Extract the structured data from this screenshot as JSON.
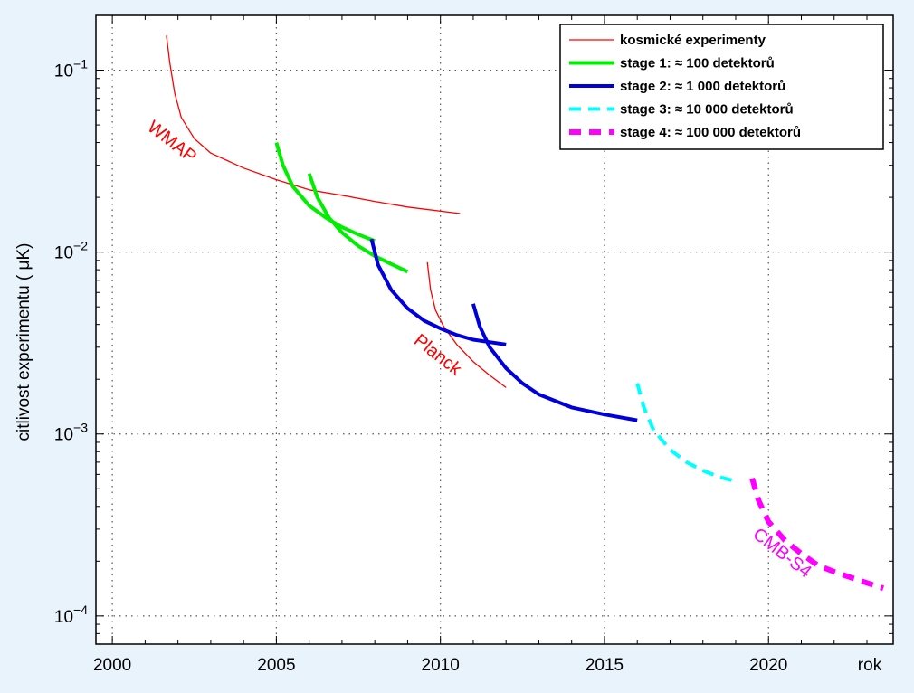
{
  "chart_data": {
    "type": "line",
    "x_scale": "linear",
    "y_scale": "log",
    "xlim": [
      1999.5,
      2023.8
    ],
    "ylim": [
      7e-05,
      0.2
    ],
    "x_ticks": [
      2000,
      2005,
      2010,
      2015,
      2020
    ],
    "x_tick_labels": [
      "2000",
      "2005",
      "2010",
      "2015",
      "2020"
    ],
    "y_ticks": [
      0.1,
      0.01,
      0.001,
      0.0001
    ],
    "y_tick_labels": [
      {
        "base": "10",
        "exp": "−1"
      },
      {
        "base": "10",
        "exp": "−2"
      },
      {
        "base": "10",
        "exp": "−3"
      },
      {
        "base": "10",
        "exp": "−4"
      }
    ],
    "xlabel": "rok",
    "ylabel": "citlivost experimentu ( μK)",
    "grid": true,
    "legend_position": "top-right",
    "legend": [
      {
        "label": "kosmické experimenty",
        "color": "#ff0000",
        "style": "thin"
      },
      {
        "label": "stage 1: ≈ 100 detektorů",
        "color": "#00ee00",
        "style": "solid"
      },
      {
        "label": "stage 2: ≈ 1 000 detektorů",
        "color": "#0000dd",
        "style": "solid"
      },
      {
        "label": "stage 3: ≈ 10 000 detektorů",
        "color": "#00ffff",
        "style": "dashed"
      },
      {
        "label": "stage 4: ≈ 100 000 detektorů",
        "color": "#ff00ff",
        "style": "dashed-thick"
      }
    ],
    "annotations": [
      {
        "text": "WMAP",
        "color": "#ff0000",
        "x": 2001.8,
        "y": 0.04
      },
      {
        "text": "Planck",
        "color": "#ff0000",
        "x": 2009.9,
        "y": 0.0027
      },
      {
        "text": "CMB-S4",
        "color": "#ff00ff",
        "x": 2020.4,
        "y": 0.00022
      }
    ],
    "series": [
      {
        "group": "kosmické experimenty",
        "color": "#ff0000",
        "style": "thin",
        "x": [
          2001.65,
          2001.75,
          2001.9,
          2002.1,
          2002.5,
          2003,
          2004,
          2005,
          2006,
          2007,
          2008,
          2009,
          2010.6
        ],
        "y": [
          0.155,
          0.11,
          0.075,
          0.055,
          0.042,
          0.035,
          0.029,
          0.025,
          0.022,
          0.0205,
          0.019,
          0.0177,
          0.0163
        ]
      },
      {
        "group": "kosmické experimenty",
        "color": "#ff0000",
        "style": "thin",
        "x": [
          2009.6,
          2009.7,
          2009.85,
          2010.1,
          2010.5,
          2011,
          2011.5,
          2012
        ],
        "y": [
          0.0088,
          0.0062,
          0.0048,
          0.0039,
          0.0031,
          0.0025,
          0.0021,
          0.0018
        ]
      },
      {
        "group": "stage 1: ≈ 100 detektorů",
        "color": "#00ee00",
        "style": "solid",
        "x": [
          2005,
          2005.2,
          2005.5,
          2006,
          2006.5,
          2007,
          2007.5,
          2008
        ],
        "y": [
          0.04,
          0.03,
          0.023,
          0.018,
          0.0155,
          0.0137,
          0.0125,
          0.0115
        ]
      },
      {
        "group": "stage 1: ≈ 100 detektorů",
        "color": "#00ee00",
        "style": "solid",
        "x": [
          2006,
          2006.25,
          2006.6,
          2007,
          2007.5,
          2008,
          2008.5,
          2009
        ],
        "y": [
          0.027,
          0.02,
          0.0155,
          0.0128,
          0.0108,
          0.0095,
          0.0086,
          0.0078
        ]
      },
      {
        "group": "stage 2: ≈ 1 000 detektorů",
        "color": "#0000dd",
        "style": "solid",
        "x": [
          2007.9,
          2008.1,
          2008.5,
          2009,
          2009.5,
          2010,
          2010.5,
          2011,
          2011.5,
          2012
        ],
        "y": [
          0.0118,
          0.0085,
          0.0062,
          0.0049,
          0.0042,
          0.0038,
          0.0035,
          0.0033,
          0.0032,
          0.0031
        ]
      },
      {
        "group": "stage 2: ≈ 1 000 detektorů",
        "color": "#0000dd",
        "style": "solid",
        "x": [
          2011,
          2011.2,
          2011.5,
          2012,
          2012.5,
          2013,
          2014,
          2015,
          2016
        ],
        "y": [
          0.0052,
          0.0039,
          0.003,
          0.0023,
          0.0019,
          0.00165,
          0.0014,
          0.00128,
          0.00119
        ]
      },
      {
        "group": "stage 3: ≈ 10 000 detektorů",
        "color": "#00ffff",
        "style": "dashed",
        "x": [
          2016,
          2016.2,
          2016.5,
          2017,
          2017.5,
          2018,
          2018.5,
          2019
        ],
        "y": [
          0.0019,
          0.0014,
          0.00105,
          0.00082,
          0.0007,
          0.00063,
          0.00058,
          0.00055
        ]
      },
      {
        "group": "stage 4: ≈ 100 000 detektorů",
        "color": "#ff00ff",
        "style": "dashed-thick",
        "x": [
          2019.5,
          2019.7,
          2020,
          2020.5,
          2021,
          2021.5,
          2022,
          2022.5,
          2023,
          2023.5
        ],
        "y": [
          0.00057,
          0.00043,
          0.00033,
          0.00026,
          0.00022,
          0.00019,
          0.000175,
          0.000163,
          0.000152,
          0.000142
        ]
      }
    ]
  }
}
